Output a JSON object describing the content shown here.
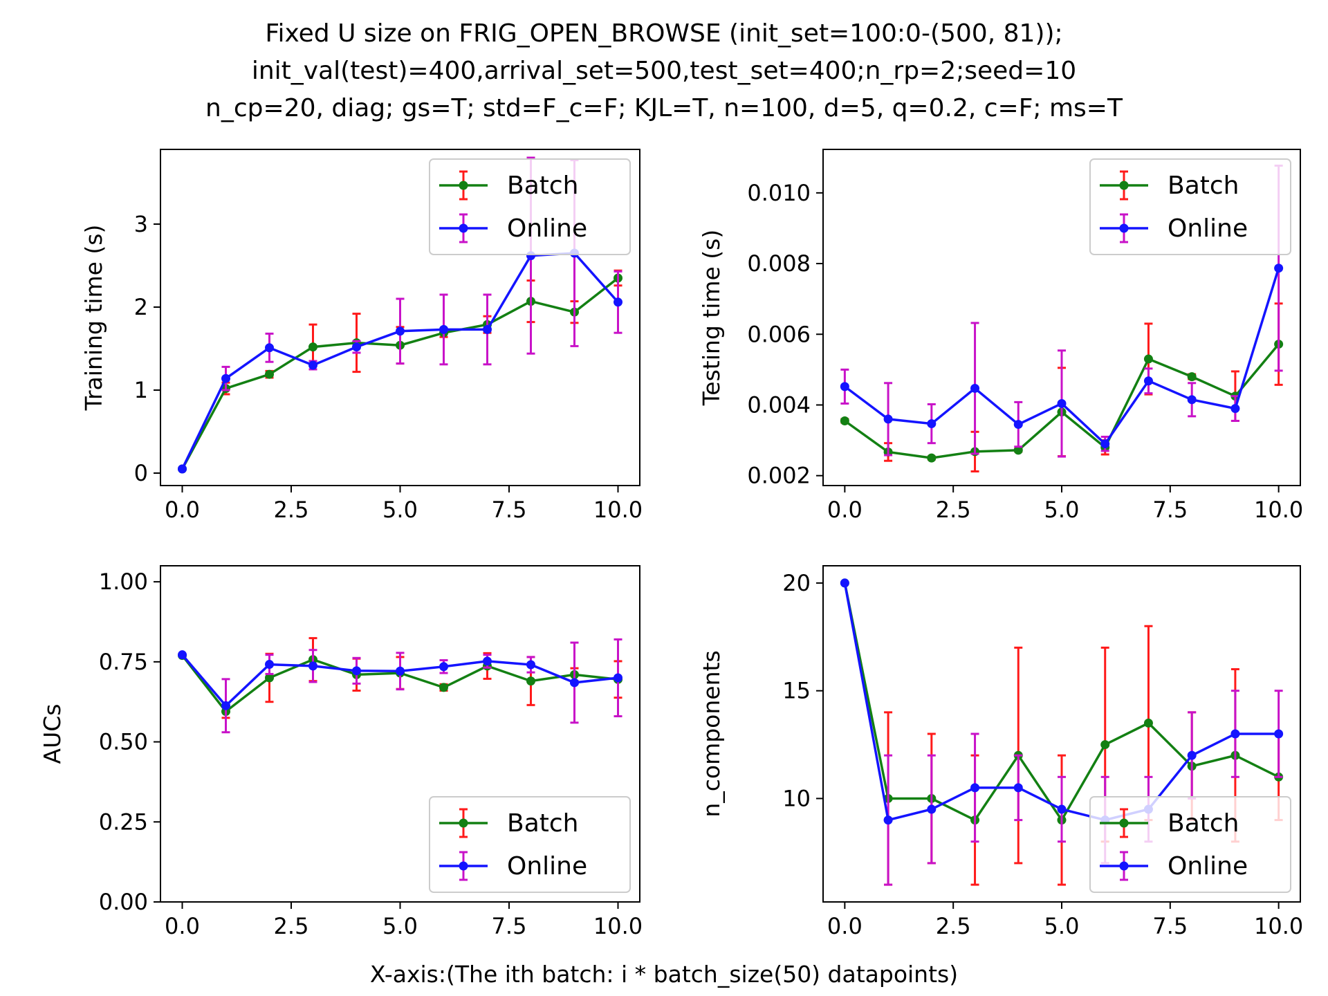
{
  "figure": {
    "title_lines": [
      "Fixed U size on FRIG_OPEN_BROWSE (init_set=100:0-(500, 81));",
      "init_val(test)=400,arrival_set=500,test_set=400;n_rp=2;seed=10",
      "n_cp=20, diag; gs=T; std=F_c=F; KJL=T, n=100, d=5, q=0.2, c=F; ms=T"
    ],
    "shared_xlabel": "X-axis:(The ith batch: i * batch_size(50) datapoints)"
  },
  "colors": {
    "batch_line": "#138013",
    "batch_err": "#ff1a1a",
    "online_line": "#1414ff",
    "online_err": "#c812c8"
  },
  "chart_data": [
    {
      "type": "line",
      "ylabel": "Training time (s)",
      "xlim": [
        -0.5,
        10.5
      ],
      "ylim": [
        -0.15,
        3.9
      ],
      "xticks": [
        0.0,
        2.5,
        5.0,
        7.5,
        10.0
      ],
      "xtick_labels": [
        "0.0",
        "2.5",
        "5.0",
        "7.5",
        "10.0"
      ],
      "yticks": [
        0,
        1,
        2,
        3
      ],
      "ytick_labels": [
        "0",
        "1",
        "2",
        "3"
      ],
      "legend_position": "upper right",
      "x": [
        0,
        1,
        2,
        3,
        4,
        5,
        6,
        7,
        8,
        9,
        10
      ],
      "series": [
        {
          "name": "Batch",
          "values": [
            0.05,
            1.02,
            1.19,
            1.52,
            1.57,
            1.54,
            1.69,
            1.79,
            2.07,
            1.94,
            2.35
          ],
          "errors": [
            0.01,
            0.07,
            0.04,
            0.27,
            0.35,
            0.22,
            0.05,
            0.1,
            0.25,
            0.13,
            0.09
          ]
        },
        {
          "name": "Online",
          "values": [
            0.05,
            1.14,
            1.51,
            1.3,
            1.52,
            1.71,
            1.73,
            1.73,
            2.62,
            2.65,
            2.06
          ],
          "errors": [
            0.01,
            0.14,
            0.17,
            0.05,
            0.07,
            0.39,
            0.42,
            0.42,
            1.18,
            1.12,
            0.37
          ]
        }
      ]
    },
    {
      "type": "line",
      "ylabel": "Testing time (s)",
      "xlim": [
        -0.5,
        10.5
      ],
      "ylim": [
        0.00172,
        0.01123
      ],
      "xticks": [
        0.0,
        2.5,
        5.0,
        7.5,
        10.0
      ],
      "xtick_labels": [
        "0.0",
        "2.5",
        "5.0",
        "7.5",
        "10.0"
      ],
      "yticks": [
        0.002,
        0.004,
        0.006,
        0.008,
        0.01
      ],
      "ytick_labels": [
        "0.002",
        "0.004",
        "0.006",
        "0.008",
        "0.010"
      ],
      "legend_position": "upper right",
      "x": [
        0,
        1,
        2,
        3,
        4,
        5,
        6,
        7,
        8,
        9,
        10
      ],
      "series": [
        {
          "name": "Batch",
          "values": [
            0.00355,
            0.00267,
            0.0025,
            0.00268,
            0.00272,
            0.0038,
            0.0028,
            0.0053,
            0.0048,
            0.00425,
            0.00572
          ],
          "errors": [
            5e-05,
            0.00025,
            4e-05,
            0.00056,
            4e-05,
            0.00125,
            0.0002,
            0.001,
            7e-05,
            0.0007,
            0.00115
          ]
        },
        {
          "name": "Online",
          "values": [
            0.00452,
            0.0036,
            0.00347,
            0.00447,
            0.00345,
            0.00404,
            0.0029,
            0.00468,
            0.00415,
            0.0039,
            0.00787
          ],
          "errors": [
            0.00048,
            0.00102,
            0.00055,
            0.00185,
            0.00063,
            0.0015,
            0.0002,
            0.00035,
            0.00047,
            0.00035,
            0.0029
          ]
        }
      ]
    },
    {
      "type": "line",
      "ylabel": "AUCs",
      "xlim": [
        -0.5,
        10.5
      ],
      "ylim": [
        0.0,
        1.05
      ],
      "xticks": [
        0.0,
        2.5,
        5.0,
        7.5,
        10.0
      ],
      "xtick_labels": [
        "0.0",
        "2.5",
        "5.0",
        "7.5",
        "10.0"
      ],
      "yticks": [
        0.0,
        0.25,
        0.5,
        0.75,
        1.0
      ],
      "ytick_labels": [
        "0.00",
        "0.25",
        "0.50",
        "0.75",
        "1.00"
      ],
      "legend_position": "lower right",
      "x": [
        0,
        1,
        2,
        3,
        4,
        5,
        6,
        7,
        8,
        9,
        10
      ],
      "series": [
        {
          "name": "Batch",
          "values": [
            0.77,
            0.595,
            0.7,
            0.757,
            0.71,
            0.715,
            0.67,
            0.737,
            0.69,
            0.71,
            0.695
          ],
          "errors": [
            0.003,
            0.02,
            0.075,
            0.067,
            0.05,
            0.05,
            0.01,
            0.04,
            0.075,
            0.02,
            0.057
          ]
        },
        {
          "name": "Online",
          "values": [
            0.772,
            0.613,
            0.742,
            0.737,
            0.722,
            0.721,
            0.735,
            0.752,
            0.741,
            0.685,
            0.7
          ],
          "errors": [
            0.003,
            0.083,
            0.03,
            0.05,
            0.04,
            0.057,
            0.02,
            0.02,
            0.024,
            0.125,
            0.12
          ]
        }
      ]
    },
    {
      "type": "line",
      "ylabel": "n_components",
      "xlim": [
        -0.5,
        10.5
      ],
      "ylim": [
        5.2,
        20.8
      ],
      "xticks": [
        0.0,
        2.5,
        5.0,
        7.5,
        10.0
      ],
      "xtick_labels": [
        "0.0",
        "2.5",
        "5.0",
        "7.5",
        "10.0"
      ],
      "yticks": [
        10,
        15,
        20
      ],
      "ytick_labels": [
        "10",
        "15",
        "20"
      ],
      "legend_position": "lower right",
      "x": [
        0,
        1,
        2,
        3,
        4,
        5,
        6,
        7,
        8,
        9,
        10
      ],
      "series": [
        {
          "name": "Batch",
          "values": [
            20,
            10,
            10,
            9,
            12,
            9,
            12.5,
            13.5,
            11.5,
            12,
            11
          ],
          "errors": [
            0,
            4,
            3,
            3,
            5,
            3,
            4.5,
            4.5,
            2.5,
            4,
            2
          ]
        },
        {
          "name": "Online",
          "values": [
            20,
            9,
            9.5,
            10.5,
            10.5,
            9.5,
            9,
            9.5,
            12,
            13,
            13
          ],
          "errors": [
            0,
            3,
            2.5,
            2.5,
            1.5,
            1.5,
            2,
            1.5,
            2,
            2,
            2
          ]
        }
      ]
    }
  ]
}
